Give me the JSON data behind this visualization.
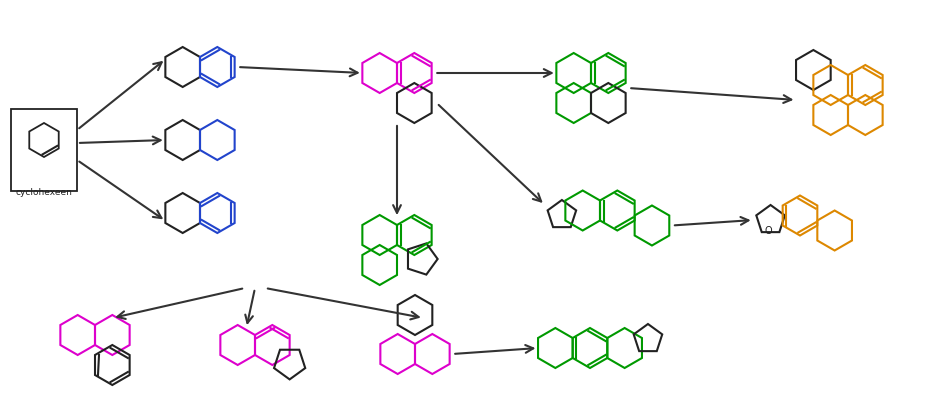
{
  "bg": "#ffffff",
  "blk": "#222222",
  "blu": "#2244cc",
  "mag": "#dd00cc",
  "grn": "#009900",
  "orn": "#dd8800",
  "R": 20,
  "lw": 1.5
}
